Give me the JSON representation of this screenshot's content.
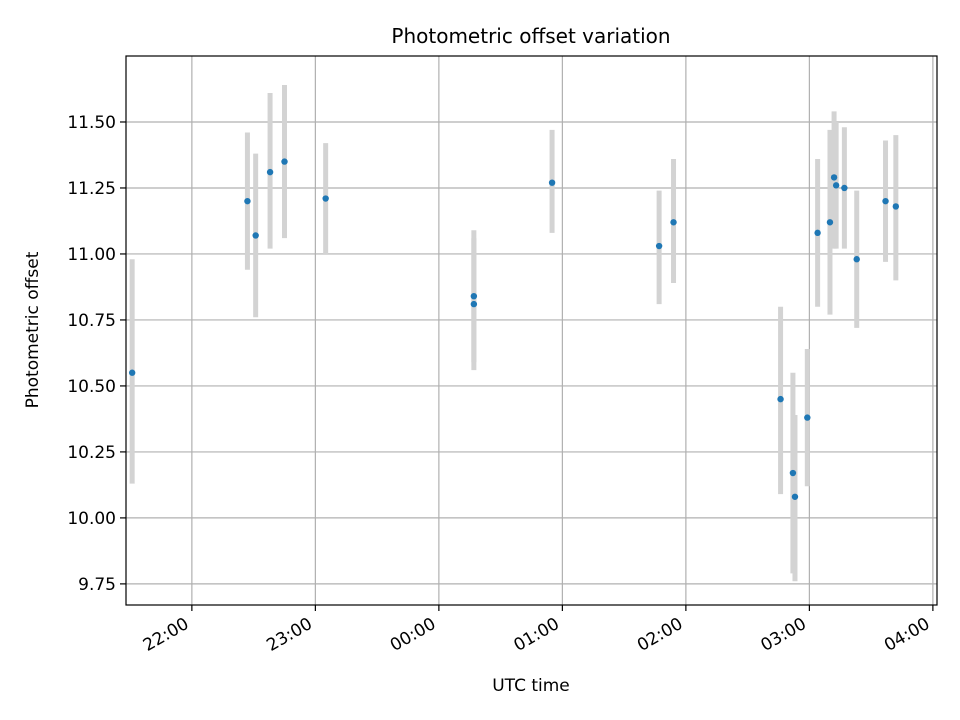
{
  "chart_data": {
    "type": "scatter",
    "title": "Photometric offset variation",
    "xlabel": "UTC time",
    "ylabel": "Photometric offset",
    "x_tick_labels": [
      "22:00",
      "23:00",
      "00:00",
      "01:00",
      "02:00",
      "03:00",
      "04:00"
    ],
    "y_tick_labels": [
      "9.75",
      "10.00",
      "10.25",
      "10.50",
      "10.75",
      "11.00",
      "11.25",
      "11.50"
    ],
    "y_ticks": [
      9.75,
      10.0,
      10.25,
      10.5,
      10.75,
      11.0,
      11.25,
      11.5
    ],
    "xlim": [
      "21:28",
      "04:02"
    ],
    "ylim": [
      9.67,
      11.75
    ],
    "grid": true,
    "colors": {
      "points": "#1f77b4",
      "error_bars": "#d3d3d3",
      "grid": "#b0b0b0"
    },
    "points": [
      {
        "x": "21:31",
        "y": 10.55,
        "y_low": 10.13,
        "y_high": 10.98
      },
      {
        "x": "22:27",
        "y": 11.2,
        "y_low": 10.94,
        "y_high": 11.46
      },
      {
        "x": "22:31",
        "y": 11.07,
        "y_low": 10.76,
        "y_high": 11.38
      },
      {
        "x": "22:38",
        "y": 11.31,
        "y_low": 11.02,
        "y_high": 11.61
      },
      {
        "x": "22:45",
        "y": 11.35,
        "y_low": 11.06,
        "y_high": 11.64
      },
      {
        "x": "23:05",
        "y": 11.21,
        "y_low": 11.0,
        "y_high": 11.42
      },
      {
        "x": "00:17",
        "y": 10.84,
        "y_low": 10.59,
        "y_high": 11.09
      },
      {
        "x": "00:17",
        "y": 10.81,
        "y_low": 10.56,
        "y_high": 11.06
      },
      {
        "x": "00:55",
        "y": 11.27,
        "y_low": 11.08,
        "y_high": 11.47
      },
      {
        "x": "01:47",
        "y": 11.03,
        "y_low": 10.81,
        "y_high": 11.24
      },
      {
        "x": "01:54",
        "y": 11.12,
        "y_low": 10.89,
        "y_high": 11.36
      },
      {
        "x": "02:46",
        "y": 10.45,
        "y_low": 10.09,
        "y_high": 10.8
      },
      {
        "x": "02:52",
        "y": 10.17,
        "y_low": 9.79,
        "y_high": 10.55
      },
      {
        "x": "02:53",
        "y": 10.08,
        "y_low": 9.76,
        "y_high": 10.39
      },
      {
        "x": "02:59",
        "y": 10.38,
        "y_low": 10.12,
        "y_high": 10.64
      },
      {
        "x": "03:04",
        "y": 11.08,
        "y_low": 10.8,
        "y_high": 11.36
      },
      {
        "x": "03:10",
        "y": 11.12,
        "y_low": 10.77,
        "y_high": 11.47
      },
      {
        "x": "03:12",
        "y": 11.29,
        "y_low": 11.02,
        "y_high": 11.54
      },
      {
        "x": "03:13",
        "y": 11.26,
        "y_low": 11.02,
        "y_high": 11.5
      },
      {
        "x": "03:17",
        "y": 11.25,
        "y_low": 11.02,
        "y_high": 11.48
      },
      {
        "x": "03:23",
        "y": 10.98,
        "y_low": 10.72,
        "y_high": 11.24
      },
      {
        "x": "03:37",
        "y": 11.2,
        "y_low": 10.97,
        "y_high": 11.43
      },
      {
        "x": "03:42",
        "y": 11.18,
        "y_low": 10.9,
        "y_high": 11.45
      }
    ]
  }
}
